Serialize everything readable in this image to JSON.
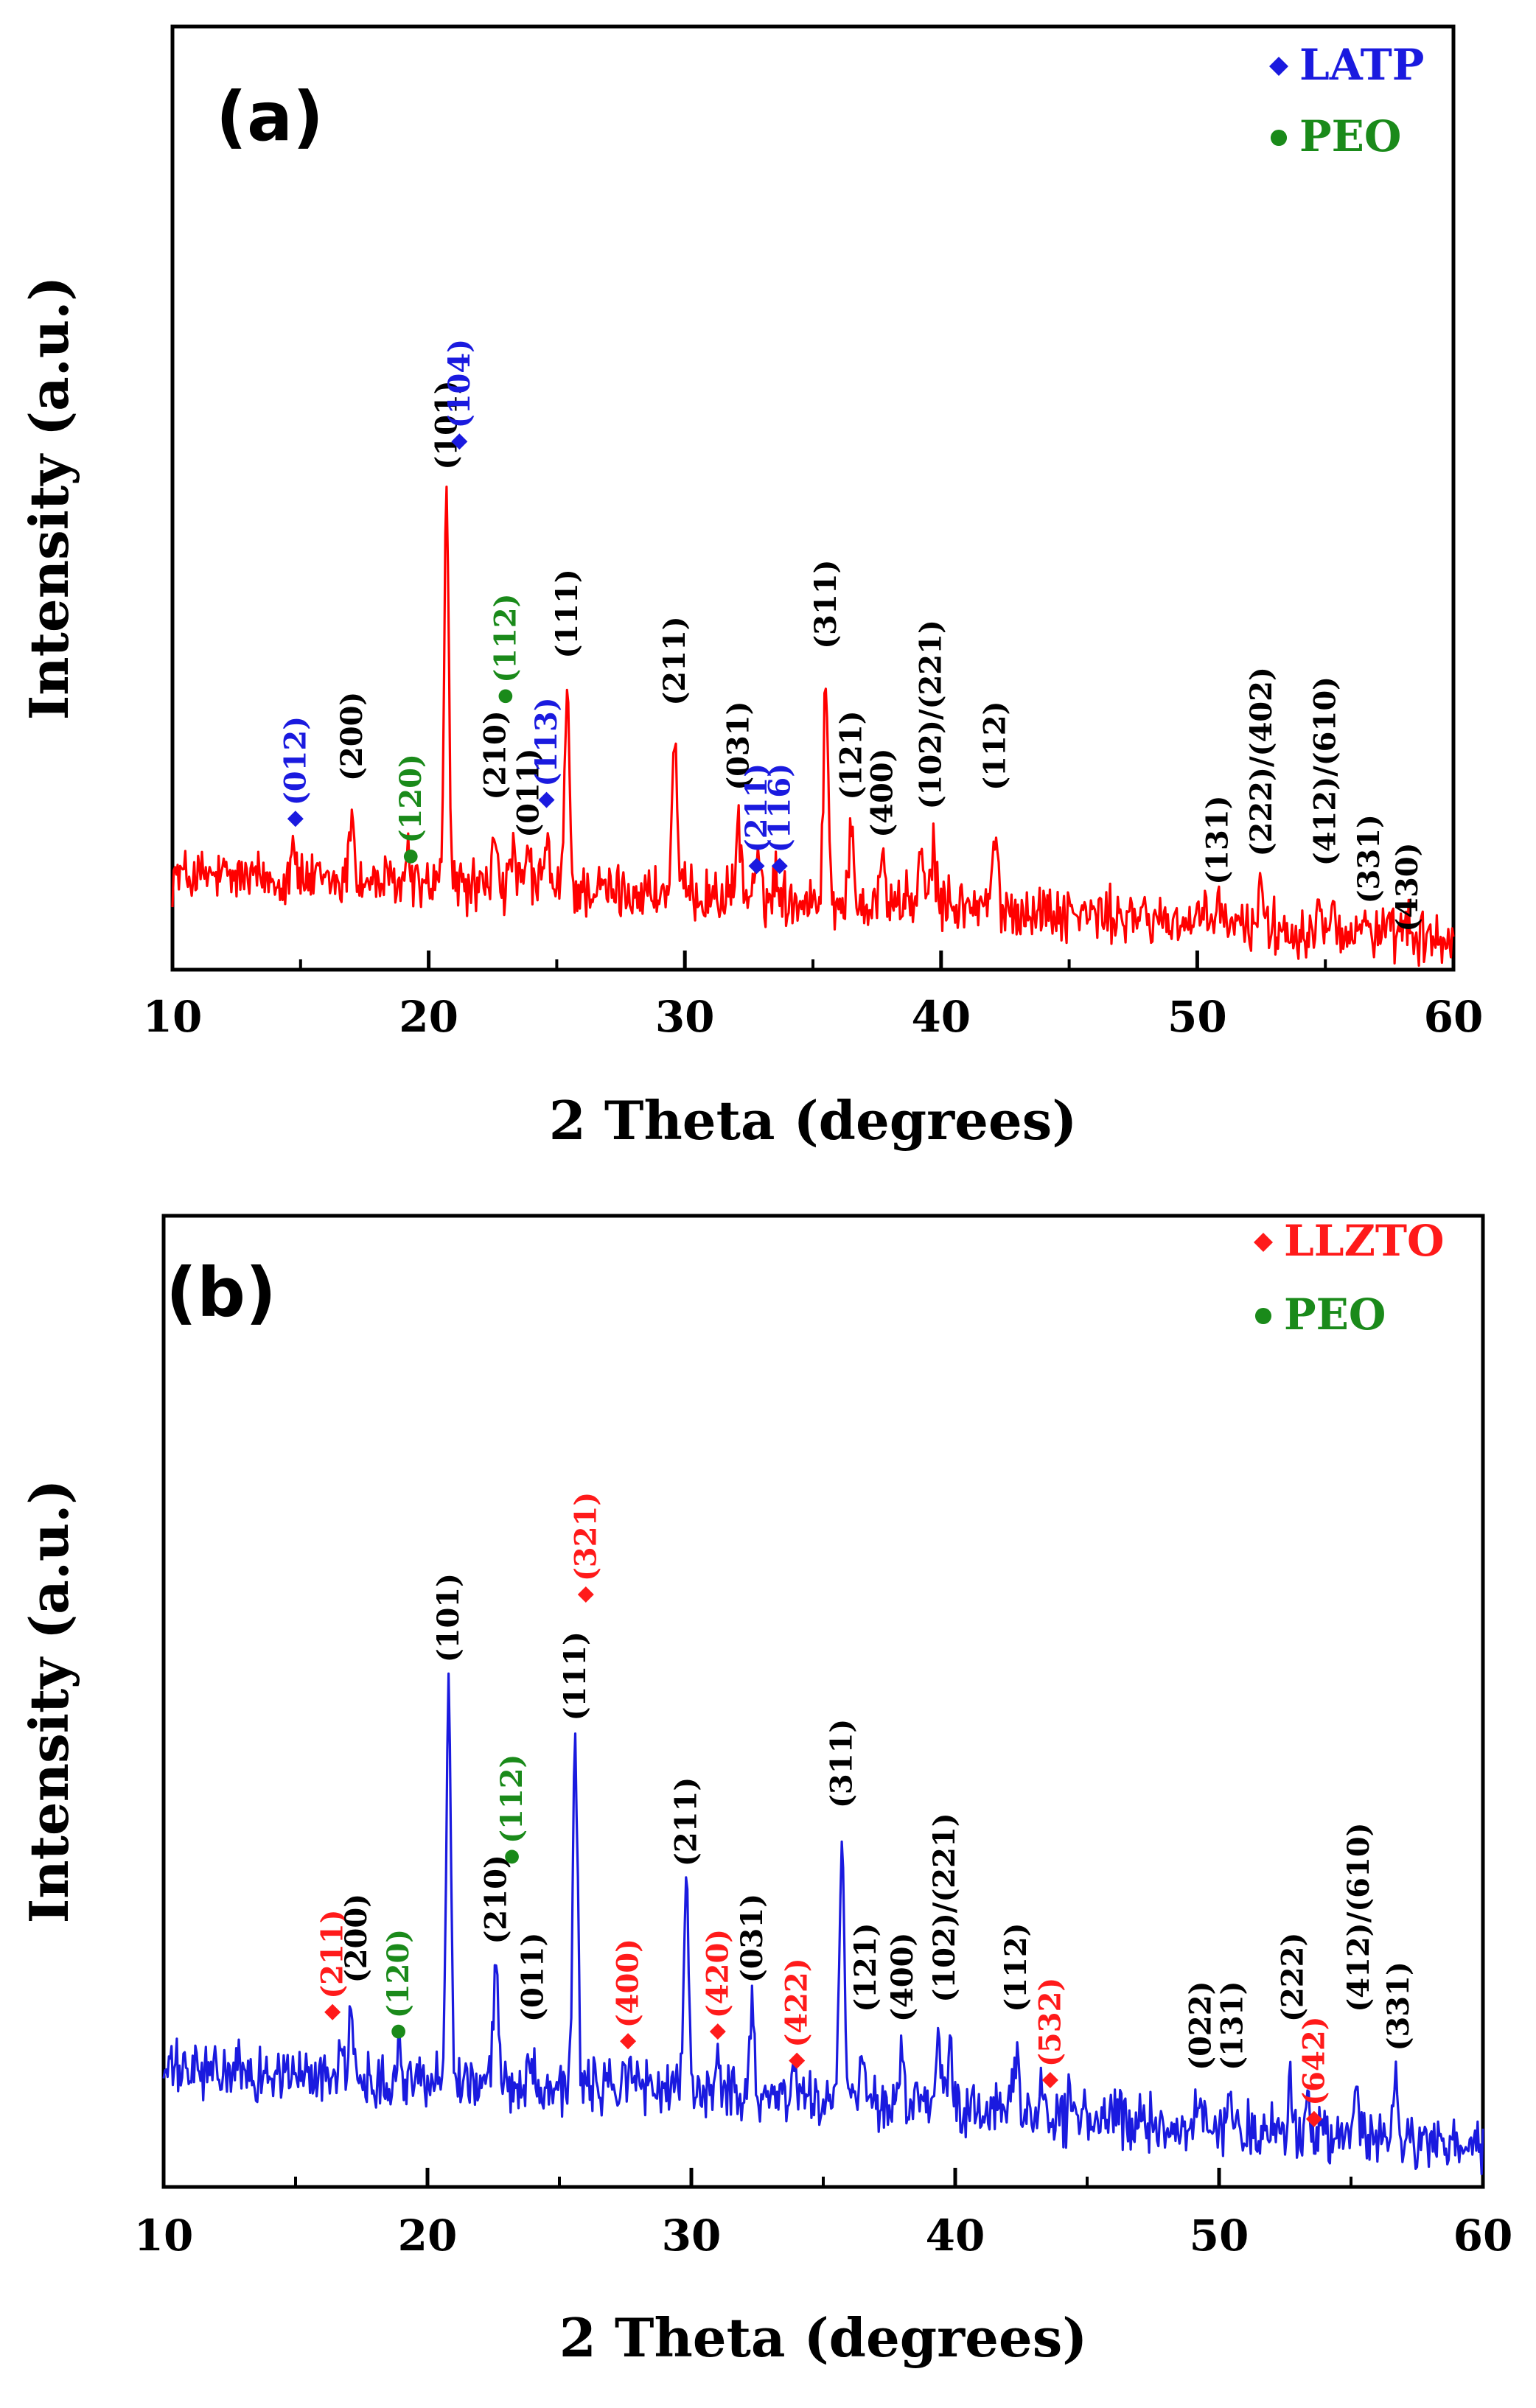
{
  "chart_data": [
    {
      "type": "line",
      "panel_label": "(a)",
      "title": "",
      "xlabel": "2 Theta (degrees)",
      "ylabel": "Intensity (a.u.)",
      "xlim": [
        10,
        60
      ],
      "ylim": [
        0,
        100
      ],
      "xticks": [
        "10",
        "20",
        "30",
        "40",
        "50",
        "60"
      ],
      "series_color": "#ff0000",
      "legend": [
        {
          "marker": "diamond",
          "text": "LATP",
          "color": "#1a1adf"
        },
        {
          "marker": "circle",
          "text": "PEO",
          "color": "#1a8a1a"
        }
      ],
      "baseline": [
        [
          10,
          10
        ],
        [
          20,
          9
        ],
        [
          30,
          8
        ],
        [
          40,
          7
        ],
        [
          50,
          5
        ],
        [
          60,
          3
        ]
      ],
      "peaks": [
        {
          "x": 14.7,
          "h": 5
        },
        {
          "x": 17.0,
          "h": 8
        },
        {
          "x": 19.2,
          "h": 3
        },
        {
          "x": 20.7,
          "h": 41
        },
        {
          "x": 22.6,
          "h": 6
        },
        {
          "x": 23.3,
          "h": 4
        },
        {
          "x": 23.9,
          "h": 4
        },
        {
          "x": 24.6,
          "h": 6
        },
        {
          "x": 25.4,
          "h": 21
        },
        {
          "x": 29.6,
          "h": 17
        },
        {
          "x": 32.1,
          "h": 8
        },
        {
          "x": 32.8,
          "h": 4
        },
        {
          "x": 33.6,
          "h": 3
        },
        {
          "x": 35.5,
          "h": 23
        },
        {
          "x": 36.5,
          "h": 7
        },
        {
          "x": 37.7,
          "h": 5
        },
        {
          "x": 39.2,
          "h": 5
        },
        {
          "x": 39.7,
          "h": 6
        },
        {
          "x": 42.1,
          "h": 8
        },
        {
          "x": 50.8,
          "h": 3
        },
        {
          "x": 52.5,
          "h": 6
        },
        {
          "x": 54.8,
          "h": 4
        },
        {
          "x": 55.3,
          "h": 5
        },
        {
          "x": 56.6,
          "h": 3
        },
        {
          "x": 58.2,
          "h": 2
        }
      ],
      "annotations": [
        {
          "x": 14.8,
          "y": 16,
          "text": "(012)",
          "color": "#1a1adf",
          "marker": "diamond"
        },
        {
          "x": 17.0,
          "y": 20,
          "text": "(200)",
          "color": "#000000",
          "marker": ""
        },
        {
          "x": 19.3,
          "y": 12,
          "text": "(120)",
          "color": "#1a8a1a",
          "marker": "circle"
        },
        {
          "x": 20.7,
          "y": 53,
          "text": "(101)",
          "color": "#000000",
          "marker": ""
        },
        {
          "x": 21.2,
          "y": 56,
          "text": "(104)",
          "color": "#1a1adf",
          "marker": "diamond"
        },
        {
          "x": 22.6,
          "y": 18,
          "text": "(210)",
          "color": "#000000",
          "marker": ""
        },
        {
          "x": 23.0,
          "y": 29,
          "text": "(112)",
          "color": "#1a8a1a",
          "marker": "circle"
        },
        {
          "x": 23.9,
          "y": 14,
          "text": "(011)",
          "color": "#000000",
          "marker": ""
        },
        {
          "x": 24.6,
          "y": 18,
          "text": "(113)",
          "color": "#1a1adf",
          "marker": "diamond"
        },
        {
          "x": 25.4,
          "y": 33,
          "text": "(111)",
          "color": "#000000",
          "marker": ""
        },
        {
          "x": 29.6,
          "y": 28,
          "text": "(211)",
          "color": "#000000",
          "marker": ""
        },
        {
          "x": 32.1,
          "y": 19,
          "text": "(031)",
          "color": "#000000",
          "marker": ""
        },
        {
          "x": 32.8,
          "y": 11,
          "text": "(211)",
          "color": "#1a1adf",
          "marker": "diamond"
        },
        {
          "x": 33.7,
          "y": 11,
          "text": "(116)",
          "color": "#1a1adf",
          "marker": "diamond"
        },
        {
          "x": 35.5,
          "y": 34,
          "text": "(311)",
          "color": "#000000",
          "marker": ""
        },
        {
          "x": 36.5,
          "y": 18,
          "text": "(121)",
          "color": "#000000",
          "marker": ""
        },
        {
          "x": 37.7,
          "y": 14,
          "text": "(400)",
          "color": "#000000",
          "marker": ""
        },
        {
          "x": 39.6,
          "y": 17,
          "text": "(102)/(221)",
          "color": "#000000",
          "marker": ""
        },
        {
          "x": 42.1,
          "y": 19,
          "text": "(112)",
          "color": "#000000",
          "marker": ""
        },
        {
          "x": 50.8,
          "y": 9,
          "text": "(131)",
          "color": "#000000",
          "marker": ""
        },
        {
          "x": 52.5,
          "y": 12,
          "text": "(222)/(402)",
          "color": "#000000",
          "marker": ""
        },
        {
          "x": 55.0,
          "y": 11,
          "text": "(412)/(610)",
          "color": "#000000",
          "marker": ""
        },
        {
          "x": 56.7,
          "y": 7,
          "text": "(331)",
          "color": "#000000",
          "marker": ""
        },
        {
          "x": 58.2,
          "y": 4,
          "text": "(430)",
          "color": "#000000",
          "marker": ""
        }
      ]
    },
    {
      "type": "line",
      "panel_label": "(b)",
      "title": "",
      "xlabel": "2 Theta (degrees)",
      "ylabel": "Intensity (a.u.)",
      "xlim": [
        10,
        60
      ],
      "ylim": [
        0,
        100
      ],
      "xticks": [
        "10",
        "20",
        "30",
        "40",
        "50",
        "60"
      ],
      "series_color": "#1a1adf",
      "legend": [
        {
          "marker": "diamond",
          "text": "LLZTO",
          "color": "#ff1a1a"
        },
        {
          "marker": "circle",
          "text": "PEO",
          "color": "#1a8a1a"
        }
      ],
      "baseline": [
        [
          10,
          12
        ],
        [
          20,
          11
        ],
        [
          30,
          10
        ],
        [
          40,
          8
        ],
        [
          50,
          6
        ],
        [
          60,
          4
        ]
      ],
      "peaks": [
        {
          "x": 16.7,
          "h": 4
        },
        {
          "x": 17.1,
          "h": 5
        },
        {
          "x": 18.9,
          "h": 3
        },
        {
          "x": 20.8,
          "h": 41
        },
        {
          "x": 22.6,
          "h": 12
        },
        {
          "x": 23.9,
          "h": 3
        },
        {
          "x": 25.6,
          "h": 35
        },
        {
          "x": 27.7,
          "h": 3
        },
        {
          "x": 29.8,
          "h": 21
        },
        {
          "x": 31.0,
          "h": 4
        },
        {
          "x": 32.3,
          "h": 9
        },
        {
          "x": 33.9,
          "h": 3
        },
        {
          "x": 35.7,
          "h": 26
        },
        {
          "x": 36.5,
          "h": 5
        },
        {
          "x": 38.0,
          "h": 5
        },
        {
          "x": 39.4,
          "h": 7
        },
        {
          "x": 39.8,
          "h": 5
        },
        {
          "x": 42.3,
          "h": 6
        },
        {
          "x": 43.3,
          "h": 3
        },
        {
          "x": 44.4,
          "h": 3
        },
        {
          "x": 49.2,
          "h": 3
        },
        {
          "x": 50.4,
          "h": 3
        },
        {
          "x": 52.7,
          "h": 6
        },
        {
          "x": 53.4,
          "h": 3
        },
        {
          "x": 55.2,
          "h": 5
        },
        {
          "x": 56.7,
          "h": 6
        }
      ],
      "annotations": [
        {
          "x": 16.4,
          "y": 18,
          "text": "(211)",
          "color": "#ff1a1a",
          "marker": "diamond"
        },
        {
          "x": 17.3,
          "y": 21,
          "text": "(200)",
          "color": "#000000",
          "marker": ""
        },
        {
          "x": 18.9,
          "y": 16,
          "text": "(120)",
          "color": "#1a8a1a",
          "marker": "circle"
        },
        {
          "x": 20.8,
          "y": 54,
          "text": "(101)",
          "color": "#000000",
          "marker": ""
        },
        {
          "x": 22.6,
          "y": 25,
          "text": "(210)",
          "color": "#000000",
          "marker": ""
        },
        {
          "x": 23.2,
          "y": 34,
          "text": "(112)",
          "color": "#1a8a1a",
          "marker": "circle"
        },
        {
          "x": 24.0,
          "y": 17,
          "text": "(011)",
          "color": "#000000",
          "marker": ""
        },
        {
          "x": 25.6,
          "y": 48,
          "text": "(111)",
          "color": "#000000",
          "marker": ""
        },
        {
          "x": 26.0,
          "y": 61,
          "text": "(321)",
          "color": "#ff1a1a",
          "marker": "diamond"
        },
        {
          "x": 27.6,
          "y": 15,
          "text": "(400)",
          "color": "#ff1a1a",
          "marker": "diamond"
        },
        {
          "x": 29.8,
          "y": 33,
          "text": "(211)",
          "color": "#000000",
          "marker": ""
        },
        {
          "x": 31.0,
          "y": 16,
          "text": "(420)",
          "color": "#ff1a1a",
          "marker": "diamond"
        },
        {
          "x": 32.3,
          "y": 21,
          "text": "(031)",
          "color": "#000000",
          "marker": ""
        },
        {
          "x": 34.0,
          "y": 13,
          "text": "(422)",
          "color": "#ff1a1a",
          "marker": "diamond"
        },
        {
          "x": 35.7,
          "y": 39,
          "text": "(311)",
          "color": "#000000",
          "marker": ""
        },
        {
          "x": 36.6,
          "y": 18,
          "text": "(121)",
          "color": "#000000",
          "marker": ""
        },
        {
          "x": 38.0,
          "y": 17,
          "text": "(400)",
          "color": "#000000",
          "marker": ""
        },
        {
          "x": 39.6,
          "y": 19,
          "text": "(102)/(221)",
          "color": "#000000",
          "marker": ""
        },
        {
          "x": 42.3,
          "y": 18,
          "text": "(112)",
          "color": "#000000",
          "marker": ""
        },
        {
          "x": 43.6,
          "y": 11,
          "text": "(532)",
          "color": "#ff1a1a",
          "marker": "diamond"
        },
        {
          "x": 49.3,
          "y": 12,
          "text": "(022)",
          "color": "#000000",
          "marker": ""
        },
        {
          "x": 50.5,
          "y": 12,
          "text": "(131)",
          "color": "#000000",
          "marker": ""
        },
        {
          "x": 52.8,
          "y": 17,
          "text": "(222)",
          "color": "#000000",
          "marker": ""
        },
        {
          "x": 53.6,
          "y": 7,
          "text": "(642)",
          "color": "#ff1a1a",
          "marker": "diamond"
        },
        {
          "x": 55.3,
          "y": 18,
          "text": "(412)/(610)",
          "color": "#000000",
          "marker": ""
        },
        {
          "x": 56.8,
          "y": 14,
          "text": "(331)",
          "color": "#000000",
          "marker": ""
        }
      ]
    }
  ]
}
